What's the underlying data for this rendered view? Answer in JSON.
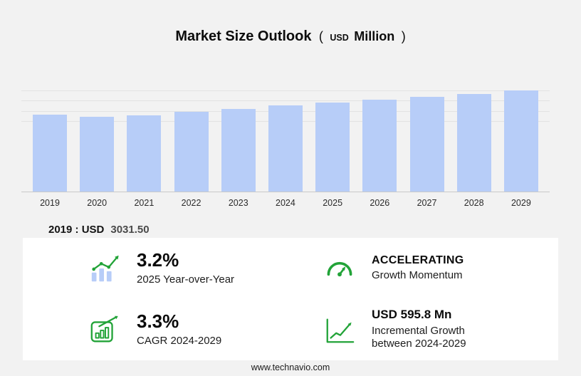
{
  "title": {
    "main": "Market Size Outlook",
    "open": "(",
    "currency": "USD",
    "unit": "Million",
    "close": ")"
  },
  "chart_data": {
    "type": "bar",
    "title": "Market Size Outlook (USD Million)",
    "categories": [
      "2019",
      "2020",
      "2021",
      "2022",
      "2023",
      "2024",
      "2025",
      "2026",
      "2027",
      "2028",
      "2029"
    ],
    "values": [
      3031.5,
      2950,
      3000,
      3135,
      3250,
      3379,
      3487,
      3600,
      3715,
      3842,
      3974.8
    ],
    "ylim": [
      0,
      4030
    ],
    "gridline_values": [
      2800,
      3200,
      3600,
      4000
    ],
    "grid": true,
    "legend": false,
    "xlabel": "",
    "ylabel": "",
    "annotation": "2019 : USD 3031.50"
  },
  "annotation": {
    "prefix": "2019 : USD",
    "value": "3031.50"
  },
  "stats": [
    {
      "icon": "yoy-bars-trend-icon",
      "value": "3.2%",
      "label": "2025 Year-over-Year"
    },
    {
      "icon": "speedometer-icon",
      "value": "ACCELERATING",
      "label": "Growth Momentum"
    },
    {
      "icon": "cagr-chart-icon",
      "value": "3.3%",
      "label": "CAGR 2024-2029"
    },
    {
      "icon": "incremental-growth-icon",
      "value": "USD 595.8 Mn",
      "label": "Incremental Growth between 2024-2029"
    }
  ],
  "footer": {
    "text": "www.technavio.com"
  },
  "colors": {
    "accent_green": "#22a338",
    "bar": "#b7cdf8",
    "background": "#f2f2f2",
    "panel": "#ffffff"
  }
}
